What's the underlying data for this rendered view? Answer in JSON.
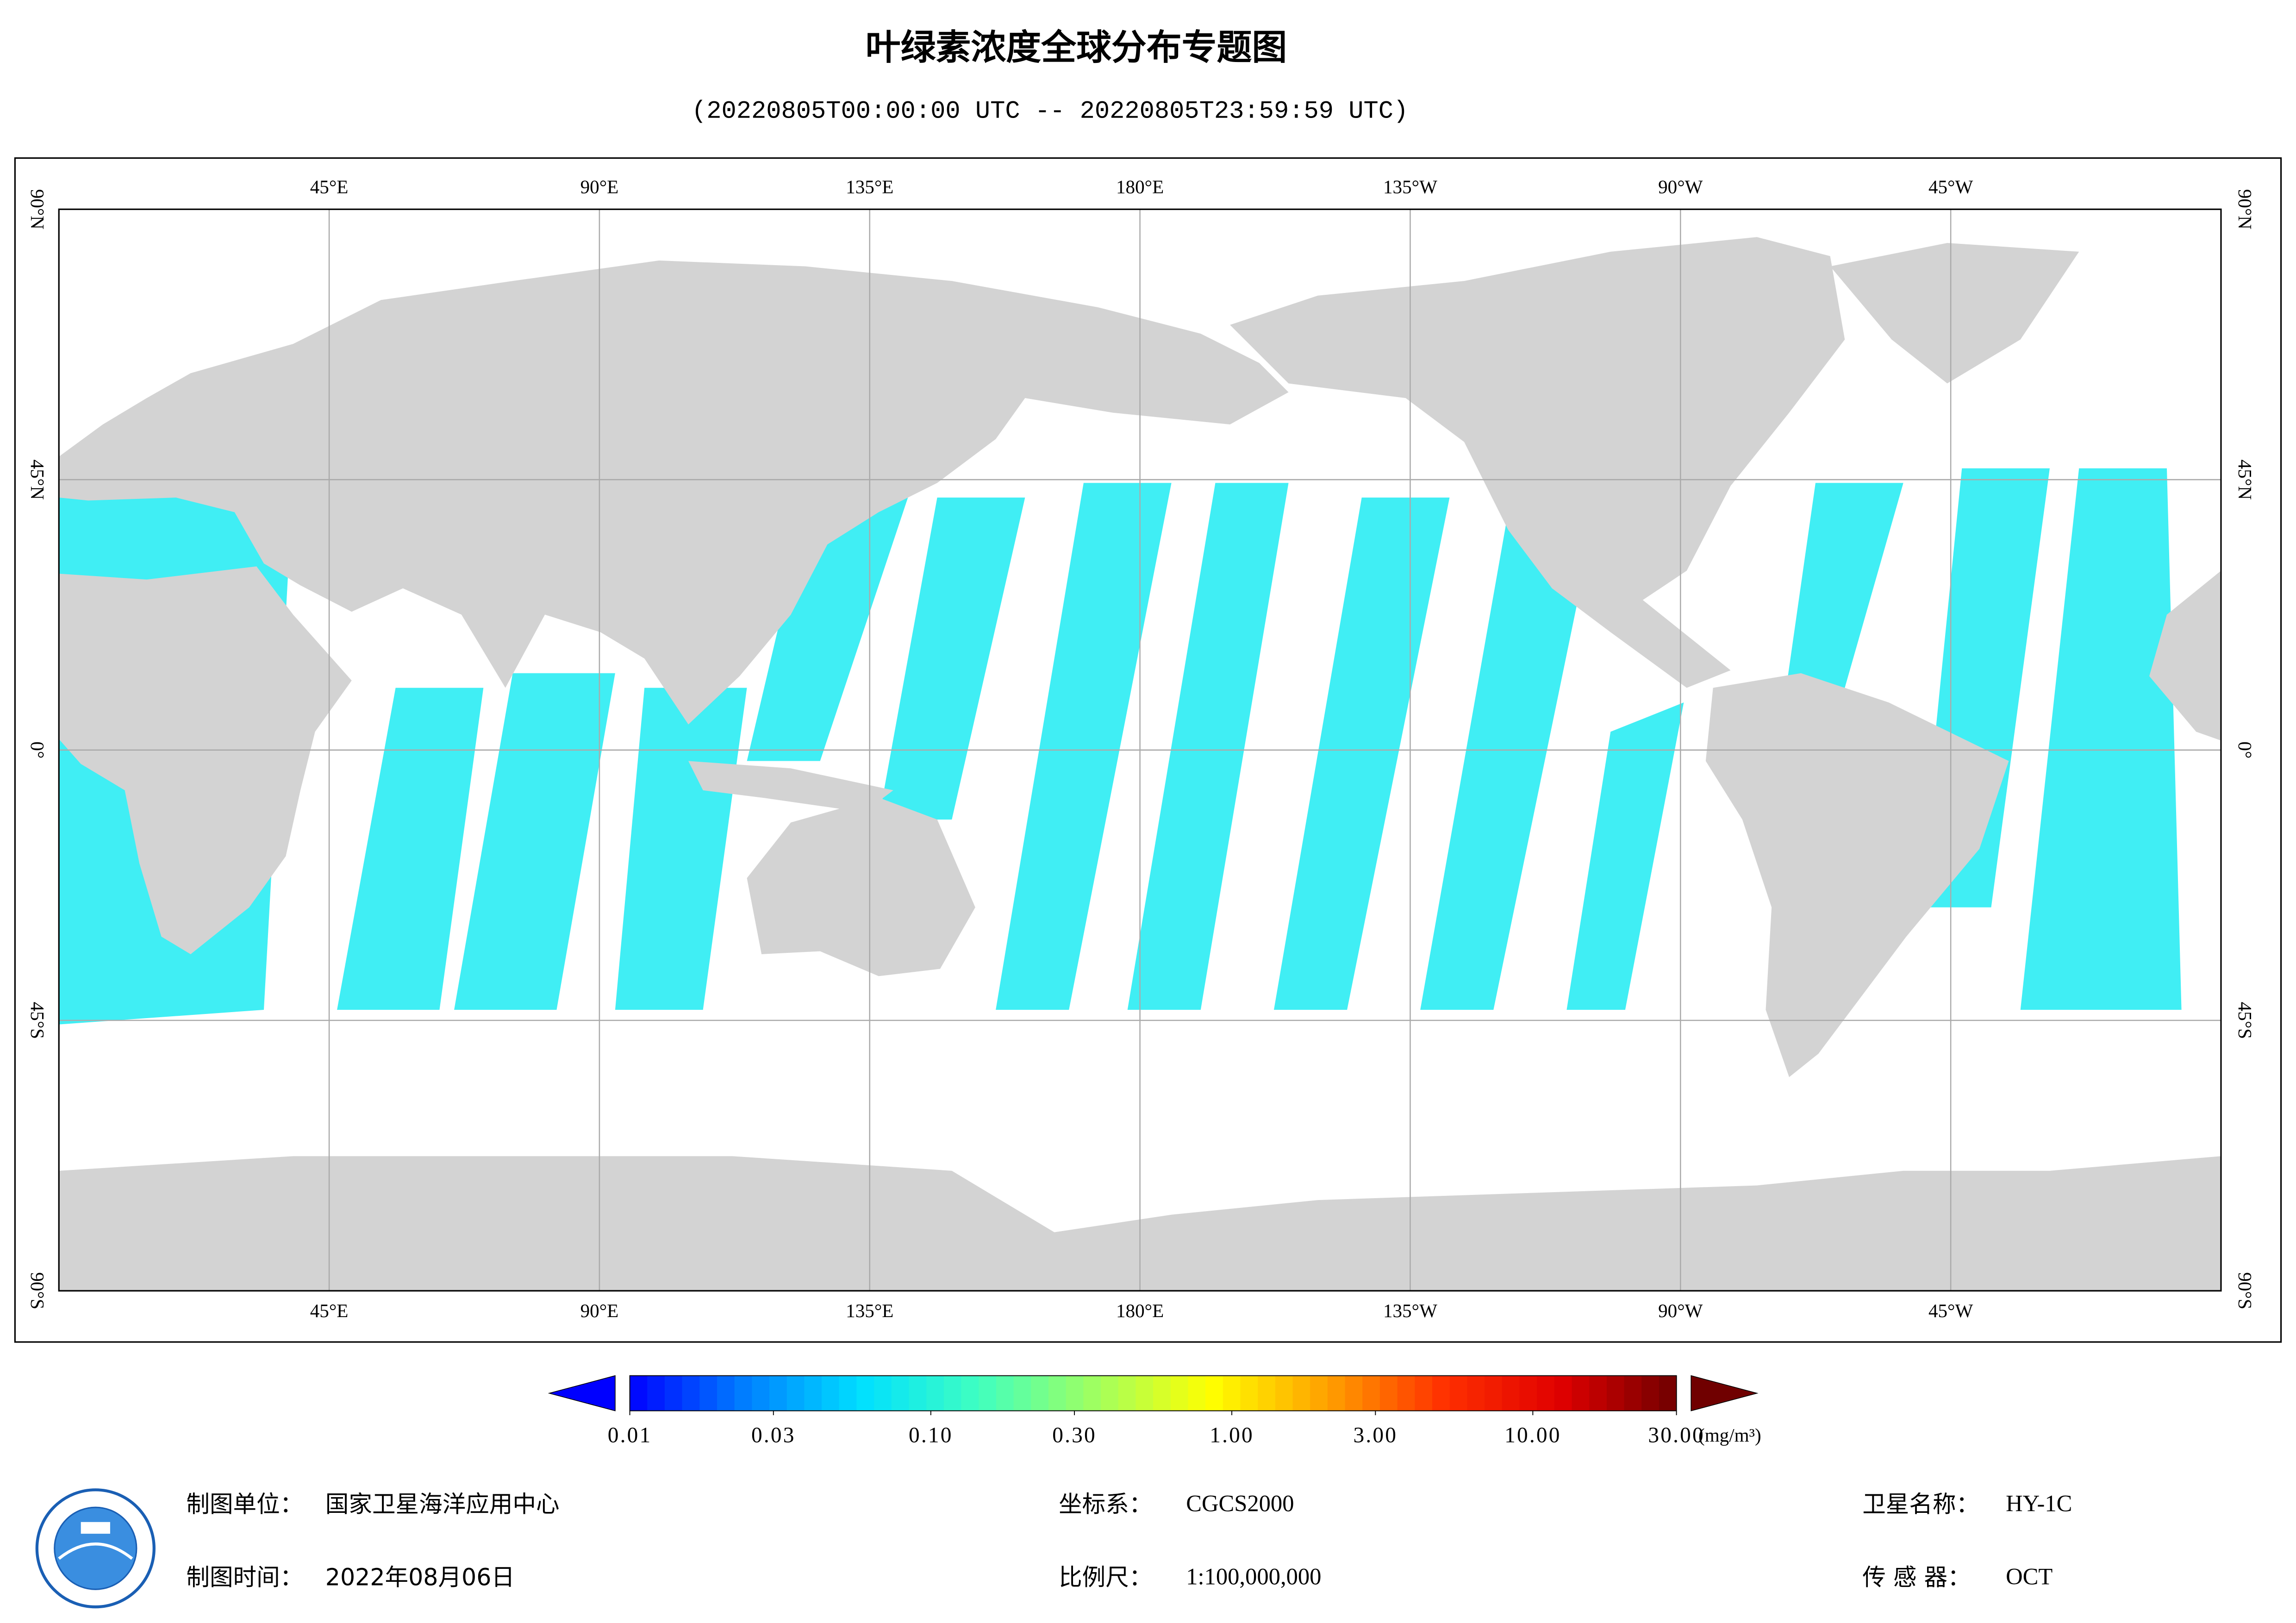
{
  "title": "叶绿素浓度全球分布专题图",
  "subtitle": "(20220805T00:00:00 UTC -- 20220805T23:59:59 UTC)",
  "map": {
    "lonlim": [
      0,
      360
    ],
    "latlim": [
      -90,
      90
    ],
    "lon_labels": [
      {
        "value": 45,
        "label": "45°E"
      },
      {
        "value": 90,
        "label": "90°E"
      },
      {
        "value": 135,
        "label": "135°E"
      },
      {
        "value": 180,
        "label": "180°E"
      },
      {
        "value": 225,
        "label": "135°W"
      },
      {
        "value": 270,
        "label": "90°W"
      },
      {
        "value": 315,
        "label": "45°W"
      }
    ],
    "lat_labels": [
      {
        "value": 90,
        "label": "90°N"
      },
      {
        "value": 45,
        "label": "45°N"
      },
      {
        "value": 0,
        "label": "0°"
      },
      {
        "value": -45,
        "label": "45°S"
      },
      {
        "value": -90,
        "label": "90°S"
      }
    ],
    "grid": true
  },
  "colorbar": {
    "scale": "log",
    "range": [
      0.01,
      30
    ],
    "ticks": [
      {
        "value": 0.01,
        "label": "0.01"
      },
      {
        "value": 0.03,
        "label": "0.03"
      },
      {
        "value": 0.1,
        "label": "0.10"
      },
      {
        "value": 0.3,
        "label": "0.30"
      },
      {
        "value": 1,
        "label": "1.00"
      },
      {
        "value": 3,
        "label": "3.00"
      },
      {
        "value": 10,
        "label": "10.00"
      },
      {
        "value": 30,
        "label": "30.00"
      }
    ],
    "unit": "(mg/m³)",
    "colors": [
      "#0000ff",
      "#0080ff",
      "#00e0ff",
      "#40ffc0",
      "#a0ff60",
      "#ffff00",
      "#ffa000",
      "#ff3000",
      "#e00000",
      "#700000"
    ]
  },
  "footer": {
    "unit": {
      "label": "制图单位：",
      "value": "国家卫星海洋应用中心"
    },
    "time": {
      "label": "制图时间：",
      "value": "2022年08月06日"
    },
    "crs": {
      "label": "坐标系：",
      "value": "CGCS2000"
    },
    "scale": {
      "label": "比例尺：",
      "value": "1:100,000,000"
    },
    "satellite": {
      "label": "卫星名称：",
      "value": "HY-1C"
    },
    "sensor": {
      "label": "传 感 器：",
      "value": "OCT"
    }
  }
}
